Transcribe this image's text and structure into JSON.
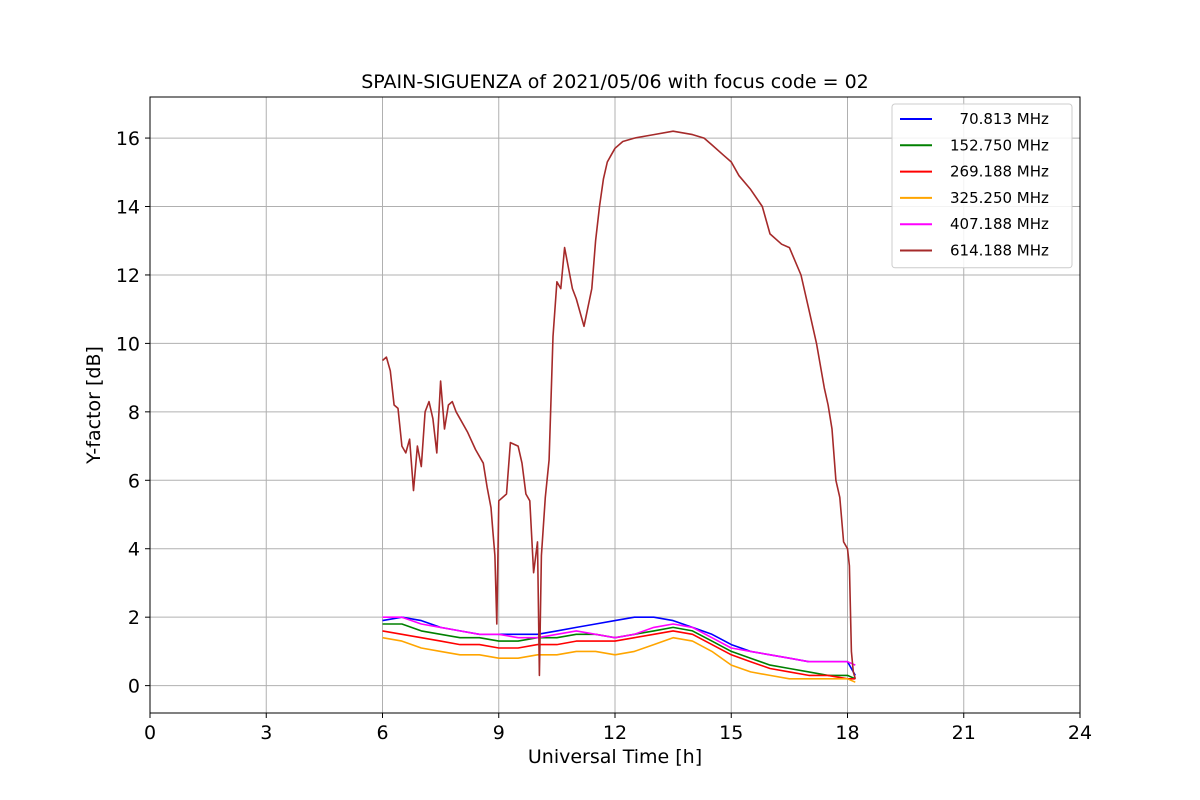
{
  "chart_data": {
    "type": "line",
    "title": "SPAIN-SIGUENZA of 2021/05/06 with focus code = 02",
    "xlabel": "Universal Time [h]",
    "ylabel": "Y-factor [dB]",
    "xlim": [
      0,
      24
    ],
    "ylim": [
      -0.8,
      17.2
    ],
    "xticks": [
      0,
      3,
      6,
      9,
      12,
      15,
      18,
      21,
      24
    ],
    "yticks": [
      0,
      2,
      4,
      6,
      8,
      10,
      12,
      14,
      16
    ],
    "grid": true,
    "legend_position": "top-right",
    "series": [
      {
        "name": "  70.813 MHz",
        "color": "#0000ff",
        "x": [
          6.0,
          6.5,
          7.0,
          7.5,
          8.0,
          8.5,
          9.0,
          9.5,
          10.0,
          10.5,
          11.0,
          11.5,
          12.0,
          12.5,
          13.0,
          13.5,
          14.0,
          14.5,
          15.0,
          15.5,
          16.0,
          16.5,
          17.0,
          17.5,
          18.0,
          18.2
        ],
        "y": [
          1.9,
          2.0,
          1.9,
          1.7,
          1.6,
          1.5,
          1.5,
          1.5,
          1.5,
          1.6,
          1.7,
          1.8,
          1.9,
          2.0,
          2.0,
          1.9,
          1.7,
          1.5,
          1.2,
          1.0,
          0.9,
          0.8,
          0.7,
          0.7,
          0.7,
          0.3
        ]
      },
      {
        "name": "152.750 MHz",
        "color": "#008000",
        "x": [
          6.0,
          6.5,
          7.0,
          7.5,
          8.0,
          8.5,
          9.0,
          9.5,
          10.0,
          10.5,
          11.0,
          11.5,
          12.0,
          12.5,
          13.0,
          13.5,
          14.0,
          14.5,
          15.0,
          15.5,
          16.0,
          16.5,
          17.0,
          17.5,
          18.0,
          18.2
        ],
        "y": [
          1.8,
          1.8,
          1.6,
          1.5,
          1.4,
          1.4,
          1.3,
          1.3,
          1.4,
          1.4,
          1.5,
          1.5,
          1.4,
          1.5,
          1.6,
          1.7,
          1.6,
          1.3,
          1.0,
          0.8,
          0.6,
          0.5,
          0.4,
          0.3,
          0.3,
          0.2
        ]
      },
      {
        "name": "269.188 MHz",
        "color": "#ff0000",
        "x": [
          6.0,
          6.5,
          7.0,
          7.5,
          8.0,
          8.5,
          9.0,
          9.5,
          10.0,
          10.5,
          11.0,
          11.5,
          12.0,
          12.5,
          13.0,
          13.5,
          14.0,
          14.5,
          15.0,
          15.5,
          16.0,
          16.5,
          17.0,
          17.5,
          18.0,
          18.2
        ],
        "y": [
          1.6,
          1.5,
          1.4,
          1.3,
          1.2,
          1.2,
          1.1,
          1.1,
          1.2,
          1.2,
          1.3,
          1.3,
          1.3,
          1.4,
          1.5,
          1.6,
          1.5,
          1.2,
          0.9,
          0.7,
          0.5,
          0.4,
          0.3,
          0.3,
          0.2,
          0.2
        ]
      },
      {
        "name": "325.250 MHz",
        "color": "#ffa500",
        "x": [
          6.0,
          6.5,
          7.0,
          7.5,
          8.0,
          8.5,
          9.0,
          9.5,
          10.0,
          10.5,
          11.0,
          11.5,
          12.0,
          12.5,
          13.0,
          13.5,
          14.0,
          14.5,
          15.0,
          15.5,
          16.0,
          16.5,
          17.0,
          17.5,
          18.0,
          18.2
        ],
        "y": [
          1.4,
          1.3,
          1.1,
          1.0,
          0.9,
          0.9,
          0.8,
          0.8,
          0.9,
          0.9,
          1.0,
          1.0,
          0.9,
          1.0,
          1.2,
          1.4,
          1.3,
          1.0,
          0.6,
          0.4,
          0.3,
          0.2,
          0.2,
          0.2,
          0.2,
          0.1
        ]
      },
      {
        "name": "407.188 MHz",
        "color": "#ff00ff",
        "x": [
          6.0,
          6.5,
          7.0,
          7.5,
          8.0,
          8.5,
          9.0,
          9.5,
          10.0,
          10.5,
          11.0,
          11.5,
          12.0,
          12.5,
          13.0,
          13.5,
          14.0,
          14.5,
          15.0,
          15.5,
          16.0,
          16.5,
          17.0,
          17.5,
          18.0,
          18.2
        ],
        "y": [
          2.0,
          2.0,
          1.8,
          1.7,
          1.6,
          1.5,
          1.5,
          1.4,
          1.4,
          1.5,
          1.6,
          1.5,
          1.4,
          1.5,
          1.7,
          1.8,
          1.7,
          1.4,
          1.1,
          1.0,
          0.9,
          0.8,
          0.7,
          0.7,
          0.7,
          0.6
        ]
      },
      {
        "name": "614.188 MHz",
        "color": "#a52a2a",
        "x": [
          6.0,
          6.1,
          6.2,
          6.3,
          6.4,
          6.5,
          6.6,
          6.7,
          6.8,
          6.9,
          7.0,
          7.1,
          7.2,
          7.3,
          7.4,
          7.5,
          7.6,
          7.7,
          7.8,
          7.9,
          8.0,
          8.2,
          8.4,
          8.6,
          8.7,
          8.8,
          8.85,
          8.9,
          8.95,
          9.0,
          9.2,
          9.3,
          9.5,
          9.6,
          9.7,
          9.8,
          9.9,
          10.0,
          10.05,
          10.1,
          10.2,
          10.3,
          10.4,
          10.5,
          10.6,
          10.7,
          10.8,
          10.9,
          11.0,
          11.2,
          11.4,
          11.5,
          11.6,
          11.7,
          11.8,
          11.9,
          12.0,
          12.2,
          12.5,
          13.0,
          13.5,
          14.0,
          14.3,
          14.5,
          14.8,
          15.0,
          15.2,
          15.5,
          15.8,
          16.0,
          16.3,
          16.5,
          16.8,
          17.0,
          17.2,
          17.4,
          17.5,
          17.6,
          17.7,
          17.8,
          17.9,
          18.0,
          18.05,
          18.1,
          18.15,
          18.2
        ],
        "y": [
          9.5,
          9.6,
          9.2,
          8.2,
          8.1,
          7.0,
          6.8,
          7.2,
          5.7,
          7.0,
          6.4,
          8.0,
          8.3,
          7.8,
          6.8,
          8.9,
          7.5,
          8.2,
          8.3,
          8.0,
          7.8,
          7.4,
          6.9,
          6.5,
          5.8,
          5.2,
          4.5,
          3.8,
          1.8,
          5.4,
          5.6,
          7.1,
          7.0,
          6.5,
          5.6,
          5.4,
          3.3,
          4.2,
          0.3,
          3.8,
          5.5,
          6.6,
          10.2,
          11.8,
          11.6,
          12.8,
          12.2,
          11.6,
          11.3,
          10.5,
          11.6,
          13.0,
          14.0,
          14.8,
          15.3,
          15.5,
          15.7,
          15.9,
          16.0,
          16.1,
          16.2,
          16.1,
          16.0,
          15.8,
          15.5,
          15.3,
          14.9,
          14.5,
          14.0,
          13.2,
          12.9,
          12.8,
          12.0,
          11.0,
          10.0,
          8.7,
          8.2,
          7.5,
          6.0,
          5.5,
          4.2,
          4.0,
          3.5,
          1.0,
          0.4,
          0.2
        ]
      }
    ]
  }
}
